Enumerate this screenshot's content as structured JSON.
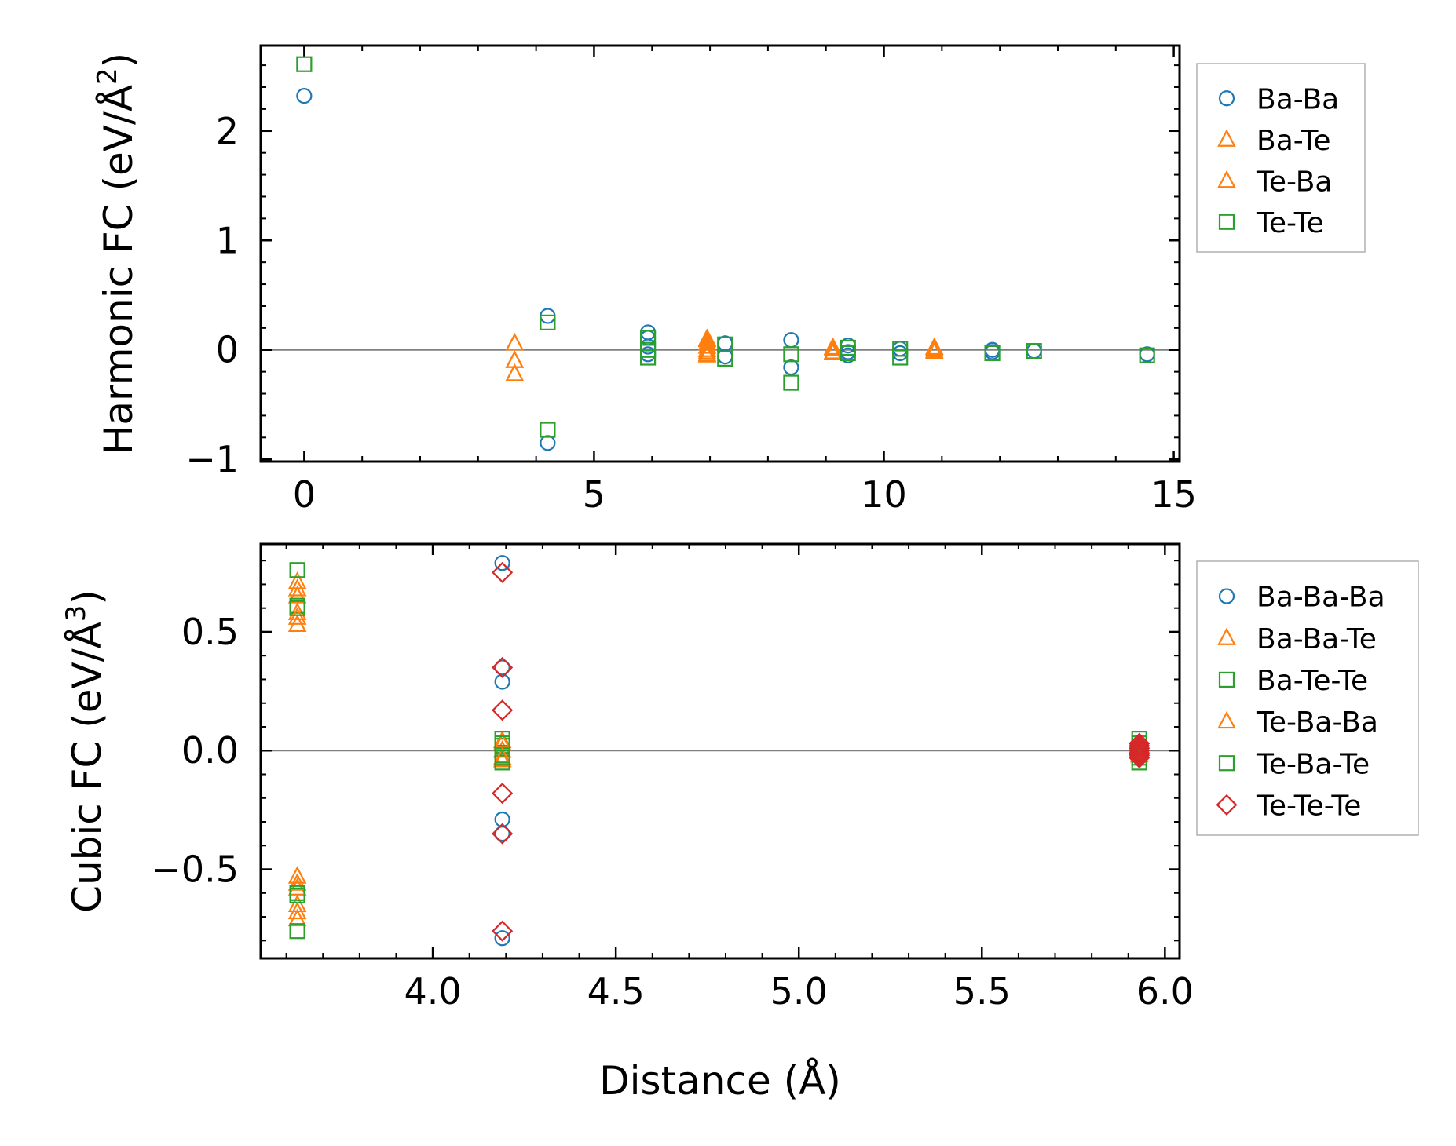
{
  "figure": {
    "xlabel": "Distance (Å)",
    "colors": {
      "blue": "#1f77b4",
      "orange": "#ff7f0e",
      "green": "#2ca02c",
      "red": "#d62728",
      "zero_line": "#808080"
    }
  },
  "chart_data": [
    {
      "type": "scatter",
      "name": "harmonic",
      "ylabel": "Harmonic FC (eV/Å²)",
      "ylabel_base": "Harmonic FC (eV/Å",
      "ylabel_sup": "2",
      "ylabel_close": ")",
      "xlim": [
        -0.75,
        15.1
      ],
      "ylim": [
        -1.02,
        2.78
      ],
      "xticks": [
        0,
        5,
        10,
        15
      ],
      "xtick_labels": [
        "0",
        "5",
        "10",
        "15"
      ],
      "yticks": [
        -1,
        0,
        1,
        2
      ],
      "ytick_labels": [
        "−1",
        "0",
        "1",
        "2"
      ],
      "zero_line": 0,
      "series": [
        {
          "name": "Ba-Ba",
          "marker": "circle",
          "color": "#1f77b4",
          "points": [
            [
              0,
              2.32
            ],
            [
              4.2,
              0.31
            ],
            [
              4.2,
              -0.85
            ],
            [
              5.93,
              0.16
            ],
            [
              5.93,
              0.11
            ],
            [
              5.93,
              0.03
            ],
            [
              5.93,
              -0.04
            ],
            [
              7.26,
              0.06
            ],
            [
              7.26,
              -0.06
            ],
            [
              8.4,
              0.09
            ],
            [
              8.4,
              -0.16
            ],
            [
              9.38,
              0.04
            ],
            [
              9.38,
              -0.02
            ],
            [
              9.38,
              -0.05
            ],
            [
              10.28,
              0.01
            ],
            [
              10.28,
              -0.03
            ],
            [
              11.87,
              0.0
            ],
            [
              11.87,
              -0.02
            ],
            [
              12.59,
              -0.01
            ],
            [
              14.54,
              -0.04
            ]
          ]
        },
        {
          "name": "Ba-Te",
          "marker": "triangle",
          "color": "#ff7f0e",
          "points": [
            [
              3.63,
              0.06
            ],
            [
              3.63,
              -0.1
            ],
            [
              3.63,
              -0.22
            ],
            [
              6.95,
              0.09
            ],
            [
              6.95,
              0.03
            ],
            [
              6.95,
              -0.02
            ],
            [
              6.95,
              -0.05
            ],
            [
              9.12,
              0.02
            ],
            [
              9.12,
              -0.02
            ],
            [
              10.87,
              0.02
            ],
            [
              10.87,
              -0.01
            ]
          ]
        },
        {
          "name": "Te-Ba",
          "marker": "triangle",
          "color": "#ff7f0e",
          "points": [
            [
              3.63,
              0.06
            ],
            [
              3.63,
              -0.1
            ],
            [
              3.63,
              -0.22
            ],
            [
              6.95,
              0.1
            ],
            [
              6.95,
              0.06
            ],
            [
              6.95,
              0.0
            ],
            [
              6.95,
              -0.04
            ],
            [
              9.12,
              0.01
            ],
            [
              9.12,
              -0.03
            ],
            [
              10.87,
              0.01
            ],
            [
              10.87,
              -0.02
            ]
          ]
        },
        {
          "name": "Te-Te",
          "marker": "square",
          "color": "#2ca02c",
          "points": [
            [
              0,
              2.61
            ],
            [
              4.2,
              0.25
            ],
            [
              4.2,
              -0.73
            ],
            [
              5.93,
              0.11
            ],
            [
              5.93,
              0.0
            ],
            [
              5.93,
              -0.07
            ],
            [
              7.26,
              0.05
            ],
            [
              7.26,
              -0.08
            ],
            [
              8.4,
              -0.04
            ],
            [
              8.4,
              -0.3
            ],
            [
              9.38,
              0.02
            ],
            [
              9.38,
              -0.03
            ],
            [
              10.28,
              0.01
            ],
            [
              10.28,
              -0.07
            ],
            [
              11.87,
              -0.03
            ],
            [
              12.59,
              -0.01
            ],
            [
              14.54,
              -0.05
            ]
          ]
        }
      ]
    },
    {
      "type": "scatter",
      "name": "cubic",
      "ylabel": "Cubic FC (eV/Å³)",
      "ylabel_base": "Cubic FC (eV/Å",
      "ylabel_sup": "3",
      "ylabel_close": ")",
      "xlim": [
        3.53,
        6.04
      ],
      "ylim": [
        -0.875,
        0.87
      ],
      "xticks": [
        4.0,
        4.5,
        5.0,
        5.5,
        6.0
      ],
      "xtick_labels": [
        "4.0",
        "4.5",
        "5.0",
        "5.5",
        "6.0"
      ],
      "yticks": [
        -0.5,
        0.0,
        0.5
      ],
      "ytick_labels": [
        "−0.5",
        "0.0",
        "0.5"
      ],
      "zero_line": 0,
      "series": [
        {
          "name": "Ba-Ba-Ba",
          "marker": "circle",
          "color": "#1f77b4",
          "points": [
            [
              4.19,
              0.79
            ],
            [
              4.19,
              0.35
            ],
            [
              4.19,
              0.29
            ],
            [
              4.19,
              -0.29
            ],
            [
              4.19,
              -0.35
            ],
            [
              4.19,
              -0.79
            ],
            [
              5.93,
              0.01
            ],
            [
              5.93,
              -0.01
            ]
          ]
        },
        {
          "name": "Ba-Ba-Te",
          "marker": "triangle",
          "color": "#ff7f0e",
          "points": [
            [
              3.63,
              0.71
            ],
            [
              3.63,
              0.65
            ],
            [
              3.63,
              0.58
            ],
            [
              3.63,
              0.53
            ],
            [
              3.63,
              -0.53
            ],
            [
              3.63,
              -0.58
            ],
            [
              3.63,
              -0.65
            ],
            [
              3.63,
              -0.71
            ],
            [
              4.19,
              0.04
            ],
            [
              4.19,
              0.0
            ],
            [
              4.19,
              -0.04
            ],
            [
              5.93,
              0.01
            ],
            [
              5.93,
              -0.01
            ]
          ]
        },
        {
          "name": "Ba-Te-Te",
          "marker": "square",
          "color": "#2ca02c",
          "points": [
            [
              3.63,
              0.76
            ],
            [
              3.63,
              0.61
            ],
            [
              3.63,
              -0.61
            ],
            [
              3.63,
              -0.76
            ],
            [
              4.19,
              0.05
            ],
            [
              4.19,
              0.02
            ],
            [
              4.19,
              -0.02
            ],
            [
              4.19,
              -0.05
            ],
            [
              5.93,
              0.05
            ],
            [
              5.93,
              -0.05
            ]
          ]
        },
        {
          "name": "Te-Ba-Ba",
          "marker": "triangle",
          "color": "#ff7f0e",
          "points": [
            [
              3.63,
              0.68
            ],
            [
              3.63,
              0.56
            ],
            [
              3.63,
              -0.56
            ],
            [
              3.63,
              -0.68
            ],
            [
              4.19,
              0.03
            ],
            [
              4.19,
              -0.03
            ],
            [
              5.93,
              0.02
            ],
            [
              5.93,
              -0.02
            ]
          ]
        },
        {
          "name": "Te-Ba-Te",
          "marker": "square",
          "color": "#2ca02c",
          "points": [
            [
              3.63,
              0.6
            ],
            [
              3.63,
              -0.6
            ],
            [
              4.19,
              0.03
            ],
            [
              4.19,
              -0.03
            ],
            [
              5.93,
              0.03
            ],
            [
              5.93,
              -0.03
            ]
          ]
        },
        {
          "name": "Te-Te-Te",
          "marker": "diamond",
          "color": "#d62728",
          "points": [
            [
              4.19,
              0.75
            ],
            [
              4.19,
              0.35
            ],
            [
              4.19,
              0.17
            ],
            [
              4.19,
              -0.18
            ],
            [
              4.19,
              -0.35
            ],
            [
              4.19,
              -0.76
            ],
            [
              5.93,
              0.03
            ],
            [
              5.93,
              0.02
            ],
            [
              5.93,
              0.01
            ],
            [
              5.93,
              0.0
            ],
            [
              5.93,
              -0.01
            ],
            [
              5.93,
              -0.02
            ],
            [
              5.93,
              -0.03
            ]
          ]
        }
      ]
    }
  ]
}
